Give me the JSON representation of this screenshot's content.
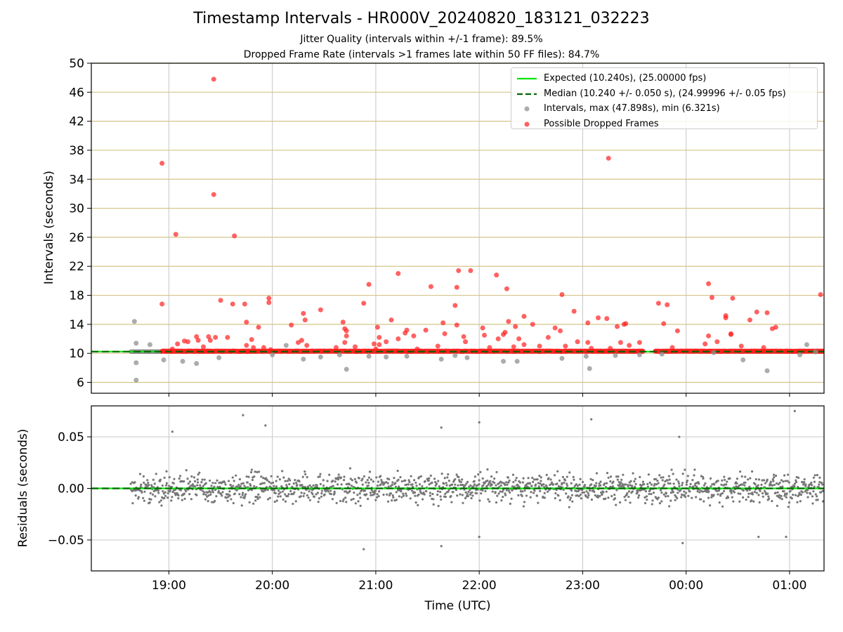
{
  "chart_data": [
    {
      "type": "scatter",
      "title": "Timestamp Intervals - HR000V_20240820_183121_032223",
      "subtitle_lines": [
        "Jitter Quality (intervals within +/-1 frame): 89.5%",
        "Dropped Frame Rate (intervals >1 frames late within 50 FF files): 84.7%"
      ],
      "xlabel": "Time (UTC)",
      "ylabel": "Intervals (seconds)",
      "xlim": [
        "18:15",
        "01:20"
      ],
      "ylim": [
        4.5,
        50
      ],
      "x_ticks": [
        "19:00",
        "20:00",
        "21:00",
        "22:00",
        "23:00",
        "00:00",
        "01:00"
      ],
      "y_ticks": [
        6,
        10,
        14,
        18,
        22,
        26,
        30,
        34,
        38,
        42,
        46,
        50
      ],
      "grid": {
        "x": true,
        "y": true,
        "y_grid_color": "#d4c48a"
      },
      "legend_position": "top-right",
      "colors": {
        "expected": "#00e600",
        "median": "#006400",
        "intervals": "#909090",
        "dropped": "#ff2020"
      },
      "series": [
        {
          "name": "Expected (10.240s), (25.00000 fps)",
          "kind": "hline",
          "y": 10.24
        },
        {
          "name": "Median (10.240 +/- 0.050 s), (24.99996 +/- 0.05 fps)",
          "kind": "hline-dashed",
          "y": 10.24
        },
        {
          "name": "Intervals, max (47.898s), min (6.321s)",
          "kind": "points",
          "points": [
            [
              "18:40",
              14.4
            ],
            [
              "18:41",
              11.4
            ],
            [
              "18:41",
              8.7
            ],
            [
              "18:41",
              6.3
            ],
            [
              "18:49",
              11.2
            ],
            [
              "18:57",
              9.1
            ],
            [
              "19:08",
              8.9
            ],
            [
              "19:16",
              8.6
            ],
            [
              "19:29",
              9.4
            ],
            [
              "20:00",
              9.8
            ],
            [
              "20:08",
              11.1
            ],
            [
              "20:18",
              9.2
            ],
            [
              "20:28",
              9.5
            ],
            [
              "20:39",
              9.8
            ],
            [
              "20:43",
              7.8
            ],
            [
              "20:56",
              9.6
            ],
            [
              "21:06",
              9.5
            ],
            [
              "21:18",
              9.6
            ],
            [
              "21:38",
              9.2
            ],
            [
              "21:46",
              9.7
            ],
            [
              "21:53",
              9.4
            ],
            [
              "22:14",
              8.9
            ],
            [
              "22:22",
              8.9
            ],
            [
              "22:48",
              9.3
            ],
            [
              "23:02",
              9.6
            ],
            [
              "23:04",
              7.9
            ],
            [
              "23:19",
              9.7
            ],
            [
              "23:33",
              9.8
            ],
            [
              "23:46",
              9.9
            ],
            [
              "00:16",
              10.1
            ],
            [
              "00:33",
              9.1
            ],
            [
              "00:47",
              7.6
            ],
            [
              "01:06",
              9.8
            ],
            [
              "01:10",
              11.2
            ],
            [
              "01:15",
              10.2
            ]
          ]
        },
        {
          "name": "Possible Dropped Frames",
          "kind": "points",
          "points": [
            [
              "18:56",
              36.2
            ],
            [
              "18:56",
              16.8
            ],
            [
              "19:02",
              10.6
            ],
            [
              "19:04",
              26.4
            ],
            [
              "19:05",
              11.3
            ],
            [
              "19:09",
              11.7
            ],
            [
              "19:11",
              11.6
            ],
            [
              "19:16",
              12.3
            ],
            [
              "19:17",
              11.8
            ],
            [
              "19:20",
              10.9
            ],
            [
              "19:23",
              12.3
            ],
            [
              "19:24",
              11.8
            ],
            [
              "19:26",
              47.8
            ],
            [
              "19:26",
              31.9
            ],
            [
              "19:27",
              12.2
            ],
            [
              "19:30",
              17.3
            ],
            [
              "19:34",
              12.2
            ],
            [
              "19:37",
              16.8
            ],
            [
              "19:38",
              26.2
            ],
            [
              "19:44",
              16.8
            ],
            [
              "19:45",
              14.3
            ],
            [
              "19:45",
              11.1
            ],
            [
              "19:48",
              11.9
            ],
            [
              "19:49",
              10.8
            ],
            [
              "19:52",
              13.6
            ],
            [
              "19:55",
              10.8
            ],
            [
              "19:58",
              17.6
            ],
            [
              "19:58",
              17.0
            ],
            [
              "19:59",
              10.5
            ],
            [
              "20:11",
              13.9
            ],
            [
              "20:15",
              11.5
            ],
            [
              "20:17",
              11.8
            ],
            [
              "20:18",
              15.5
            ],
            [
              "20:19",
              14.6
            ],
            [
              "20:20",
              11.1
            ],
            [
              "20:28",
              16.0
            ],
            [
              "20:37",
              10.8
            ],
            [
              "20:41",
              14.3
            ],
            [
              "20:42",
              11.5
            ],
            [
              "20:42",
              13.4
            ],
            [
              "20:43",
              13.1
            ],
            [
              "20:43",
              12.4
            ],
            [
              "20:48",
              10.9
            ],
            [
              "20:53",
              16.9
            ],
            [
              "20:56",
              19.5
            ],
            [
              "20:59",
              11.3
            ],
            [
              "21:00",
              10.6
            ],
            [
              "21:01",
              13.6
            ],
            [
              "21:02",
              12.2
            ],
            [
              "21:02",
              11.2
            ],
            [
              "21:06",
              11.6
            ],
            [
              "21:09",
              14.6
            ],
            [
              "21:13",
              21.0
            ],
            [
              "21:13",
              12.0
            ],
            [
              "21:17",
              12.8
            ],
            [
              "21:18",
              13.2
            ],
            [
              "21:22",
              12.4
            ],
            [
              "21:24",
              10.6
            ],
            [
              "21:29",
              13.2
            ],
            [
              "21:32",
              19.2
            ],
            [
              "21:36",
              11.0
            ],
            [
              "21:39",
              14.2
            ],
            [
              "21:40",
              12.7
            ],
            [
              "21:46",
              16.6
            ],
            [
              "21:47",
              19.1
            ],
            [
              "21:47",
              13.9
            ],
            [
              "21:48",
              21.4
            ],
            [
              "21:51",
              12.3
            ],
            [
              "21:52",
              11.6
            ],
            [
              "21:55",
              21.4
            ],
            [
              "22:02",
              13.5
            ],
            [
              "22:03",
              12.5
            ],
            [
              "22:06",
              10.8
            ],
            [
              "22:10",
              20.8
            ],
            [
              "22:11",
              12.0
            ],
            [
              "22:14",
              12.6
            ],
            [
              "22:15",
              12.9
            ],
            [
              "22:16",
              18.9
            ],
            [
              "22:17",
              14.4
            ],
            [
              "22:20",
              10.9
            ],
            [
              "22:21",
              13.7
            ],
            [
              "22:23",
              12.0
            ],
            [
              "22:26",
              15.1
            ],
            [
              "22:26",
              11.2
            ],
            [
              "22:31",
              14.0
            ],
            [
              "22:35",
              11.0
            ],
            [
              "22:40",
              12.2
            ],
            [
              "22:44",
              13.5
            ],
            [
              "22:47",
              13.1
            ],
            [
              "22:48",
              18.1
            ],
            [
              "22:50",
              11.0
            ],
            [
              "22:55",
              15.8
            ],
            [
              "22:57",
              11.6
            ],
            [
              "23:03",
              14.2
            ],
            [
              "23:03",
              11.5
            ],
            [
              "23:05",
              10.7
            ],
            [
              "23:09",
              14.9
            ],
            [
              "23:14",
              14.8
            ],
            [
              "23:15",
              36.9
            ],
            [
              "23:16",
              10.7
            ],
            [
              "23:20",
              13.7
            ],
            [
              "23:22",
              11.5
            ],
            [
              "23:24",
              14.0
            ],
            [
              "23:25",
              14.1
            ],
            [
              "23:27",
              11.1
            ],
            [
              "23:33",
              11.5
            ],
            [
              "23:44",
              16.9
            ],
            [
              "23:47",
              14.1
            ],
            [
              "23:49",
              16.7
            ],
            [
              "23:52",
              10.8
            ],
            [
              "23:55",
              13.1
            ],
            [
              "00:11",
              11.3
            ],
            [
              "00:13",
              19.6
            ],
            [
              "00:15",
              17.7
            ],
            [
              "00:13",
              12.4
            ],
            [
              "00:18",
              11.6
            ],
            [
              "00:23",
              15.2
            ],
            [
              "00:23",
              14.9
            ],
            [
              "00:26",
              12.7
            ],
            [
              "00:26",
              12.6
            ],
            [
              "00:27",
              17.6
            ],
            [
              "00:32",
              11.0
            ],
            [
              "00:37",
              14.6
            ],
            [
              "00:41",
              15.7
            ],
            [
              "00:45",
              10.8
            ],
            [
              "00:47",
              15.6
            ],
            [
              "00:50",
              13.4
            ],
            [
              "00:52",
              13.6
            ],
            [
              "01:18",
              18.1
            ]
          ]
        }
      ]
    },
    {
      "type": "scatter",
      "xlabel": "Time (UTC)",
      "ylabel": "Residuals (seconds)",
      "xlim": [
        "18:15",
        "01:20"
      ],
      "ylim": [
        -0.08,
        0.08
      ],
      "y_ticks": [
        "−0.05",
        "0.00",
        "0.05"
      ],
      "y_tick_values": [
        -0.05,
        0,
        0.05
      ],
      "x_ticks": [
        "19:00",
        "20:00",
        "21:00",
        "22:00",
        "23:00",
        "00:00",
        "01:00"
      ],
      "grid": {
        "x": true,
        "y": true
      },
      "zero_line_colors": [
        "#00e600",
        "#006400"
      ],
      "point_color": "#777777",
      "notable_points": [
        [
          "19:02",
          0.055
        ],
        [
          "19:43",
          0.071
        ],
        [
          "19:56",
          0.061
        ],
        [
          "20:53",
          -0.059
        ],
        [
          "21:38",
          0.059
        ],
        [
          "22:00",
          -0.047
        ],
        [
          "22:00",
          0.064
        ],
        [
          "21:38",
          -0.056
        ],
        [
          "23:05",
          0.067
        ],
        [
          "23:56",
          0.05
        ],
        [
          "23:58",
          -0.053
        ],
        [
          "00:42",
          -0.047
        ],
        [
          "00:58",
          -0.047
        ],
        [
          "01:03",
          0.075
        ]
      ],
      "points_summary": {
        "count": 1500,
        "approx_std_dev": 0.011,
        "x_start": "18:38",
        "x_end": "01:20"
      }
    }
  ],
  "legend_labels": [
    "Expected (10.240s), (25.00000 fps)",
    "Median (10.240 +/- 0.050 s), (24.99996 +/- 0.05 fps)",
    "Intervals, max (47.898s), min (6.321s)",
    "Possible Dropped Frames"
  ]
}
